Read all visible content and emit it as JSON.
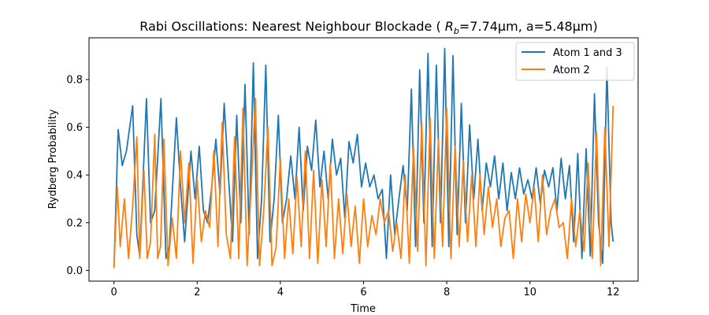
{
  "chart_data": {
    "type": "line",
    "title_main": "Rabi Oscillations: Nearest Neighbour Blockade ( ",
    "title_R": "R",
    "title_sub": "b",
    "title_rest": "=7.74μm, a=5.48μm)",
    "xlabel": "Time",
    "ylabel": "Rydberg Probability",
    "xlim": [
      -0.6,
      12.6
    ],
    "ylim": [
      -0.045,
      0.975
    ],
    "xticks": [
      0,
      2,
      4,
      6,
      8,
      10,
      12
    ],
    "xtick_labels": [
      "0",
      "2",
      "4",
      "6",
      "8",
      "10",
      "12"
    ],
    "yticks": [
      0.0,
      0.2,
      0.4,
      0.6,
      0.8
    ],
    "ytick_labels": [
      "0.0",
      "0.2",
      "0.4",
      "0.6",
      "0.8"
    ],
    "grid": false,
    "legend_position": "top-right",
    "series": [
      {
        "name": "Atom 1 and 3",
        "color": "#1f77b4",
        "x": [
          0,
          0.1,
          0.2,
          0.3,
          0.45,
          0.55,
          0.62,
          0.78,
          0.88,
          0.98,
          1.13,
          1.25,
          1.33,
          1.5,
          1.6,
          1.7,
          1.85,
          1.95,
          2.05,
          2.15,
          2.25,
          2.35,
          2.45,
          2.55,
          2.65,
          2.75,
          2.85,
          2.95,
          3.05,
          3.15,
          3.25,
          3.35,
          3.45,
          3.55,
          3.65,
          3.75,
          3.85,
          3.95,
          4.05,
          4.15,
          4.25,
          4.35,
          4.45,
          4.55,
          4.65,
          4.75,
          4.85,
          4.95,
          5.05,
          5.15,
          5.25,
          5.35,
          5.45,
          5.55,
          5.65,
          5.75,
          5.85,
          5.95,
          6.05,
          6.15,
          6.25,
          6.35,
          6.45,
          6.55,
          6.65,
          6.75,
          6.85,
          6.95,
          7.05,
          7.15,
          7.25,
          7.35,
          7.45,
          7.55,
          7.65,
          7.75,
          7.85,
          7.95,
          8.05,
          8.15,
          8.25,
          8.35,
          8.45,
          8.55,
          8.65,
          8.75,
          8.85,
          8.95,
          9.05,
          9.15,
          9.25,
          9.35,
          9.45,
          9.55,
          9.65,
          9.75,
          9.85,
          9.95,
          10.05,
          10.15,
          10.25,
          10.35,
          10.45,
          10.55,
          10.65,
          10.75,
          10.85,
          10.95,
          11.05,
          11.15,
          11.25,
          11.35,
          11.45,
          11.55,
          11.65,
          11.75,
          11.85,
          11.95,
          12.0
        ],
        "y": [
          0.01,
          0.59,
          0.44,
          0.5,
          0.69,
          0.15,
          0.06,
          0.72,
          0.2,
          0.25,
          0.72,
          0.05,
          0.1,
          0.64,
          0.35,
          0.12,
          0.5,
          0.3,
          0.52,
          0.25,
          0.2,
          0.35,
          0.55,
          0.32,
          0.7,
          0.4,
          0.12,
          0.65,
          0.2,
          0.78,
          0.15,
          0.87,
          0.05,
          0.3,
          0.86,
          0.12,
          0.3,
          0.65,
          0.2,
          0.3,
          0.48,
          0.3,
          0.6,
          0.25,
          0.52,
          0.42,
          0.63,
          0.35,
          0.5,
          0.3,
          0.55,
          0.4,
          0.47,
          0.22,
          0.54,
          0.45,
          0.57,
          0.35,
          0.45,
          0.35,
          0.4,
          0.3,
          0.34,
          0.05,
          0.4,
          0.15,
          0.3,
          0.44,
          0.25,
          0.76,
          0.1,
          0.84,
          0.2,
          0.91,
          0.1,
          0.86,
          0.2,
          0.93,
          0.1,
          0.9,
          0.15,
          0.7,
          0.2,
          0.61,
          0.3,
          0.55,
          0.25,
          0.45,
          0.35,
          0.48,
          0.3,
          0.45,
          0.25,
          0.41,
          0.3,
          0.43,
          0.32,
          0.38,
          0.3,
          0.43,
          0.28,
          0.42,
          0.35,
          0.43,
          0.25,
          0.47,
          0.3,
          0.44,
          0.12,
          0.49,
          0.05,
          0.51,
          0.06,
          0.74,
          0.2,
          0.03,
          0.85,
          0.2,
          0.12
        ]
      },
      {
        "name": "Atom 2",
        "color": "#ff7f0e",
        "x": [
          0,
          0.08,
          0.15,
          0.25,
          0.35,
          0.45,
          0.55,
          0.62,
          0.72,
          0.8,
          0.88,
          0.98,
          1.05,
          1.12,
          1.2,
          1.3,
          1.4,
          1.5,
          1.6,
          1.7,
          1.8,
          1.9,
          2.0,
          2.1,
          2.2,
          2.3,
          2.4,
          2.5,
          2.6,
          2.7,
          2.8,
          2.9,
          3.0,
          3.1,
          3.2,
          3.3,
          3.4,
          3.5,
          3.6,
          3.7,
          3.8,
          3.9,
          4.0,
          4.1,
          4.2,
          4.3,
          4.4,
          4.5,
          4.6,
          4.7,
          4.8,
          4.9,
          5.0,
          5.1,
          5.2,
          5.3,
          5.4,
          5.5,
          5.6,
          5.7,
          5.8,
          5.9,
          6.0,
          6.1,
          6.2,
          6.3,
          6.4,
          6.5,
          6.6,
          6.7,
          6.8,
          6.9,
          7.0,
          7.1,
          7.2,
          7.3,
          7.4,
          7.5,
          7.6,
          7.7,
          7.8,
          7.9,
          8.0,
          8.1,
          8.2,
          8.3,
          8.4,
          8.5,
          8.6,
          8.7,
          8.8,
          8.9,
          9.0,
          9.1,
          9.2,
          9.3,
          9.4,
          9.5,
          9.6,
          9.7,
          9.8,
          9.9,
          10.0,
          10.1,
          10.2,
          10.3,
          10.4,
          10.5,
          10.6,
          10.7,
          10.8,
          10.9,
          11.0,
          11.1,
          11.2,
          11.3,
          11.4,
          11.5,
          11.6,
          11.7,
          11.8,
          11.9,
          12.0
        ],
        "y": [
          0.01,
          0.35,
          0.1,
          0.3,
          0.05,
          0.27,
          0.56,
          0.05,
          0.42,
          0.05,
          0.12,
          0.57,
          0.05,
          0.1,
          0.55,
          0.02,
          0.22,
          0.05,
          0.5,
          0.2,
          0.45,
          0.03,
          0.38,
          0.12,
          0.25,
          0.18,
          0.5,
          0.1,
          0.62,
          0.15,
          0.05,
          0.56,
          0.05,
          0.68,
          0.02,
          0.35,
          0.72,
          0.02,
          0.25,
          0.6,
          0.02,
          0.1,
          0.47,
          0.05,
          0.3,
          0.07,
          0.39,
          0.1,
          0.5,
          0.05,
          0.42,
          0.03,
          0.38,
          0.1,
          0.45,
          0.05,
          0.3,
          0.07,
          0.32,
          0.1,
          0.27,
          0.03,
          0.3,
          0.1,
          0.23,
          0.15,
          0.3,
          0.2,
          0.25,
          0.08,
          0.2,
          0.05,
          0.4,
          0.03,
          0.52,
          0.08,
          0.62,
          0.02,
          0.64,
          0.05,
          0.55,
          0.1,
          0.68,
          0.05,
          0.52,
          0.1,
          0.46,
          0.12,
          0.4,
          0.1,
          0.4,
          0.15,
          0.35,
          0.18,
          0.3,
          0.1,
          0.22,
          0.25,
          0.05,
          0.3,
          0.12,
          0.32,
          0.2,
          0.35,
          0.12,
          0.4,
          0.15,
          0.25,
          0.3,
          0.18,
          0.2,
          0.05,
          0.3,
          0.1,
          0.25,
          0.08,
          0.45,
          0.05,
          0.58,
          0.02,
          0.6,
          0.1,
          0.69
        ]
      }
    ]
  }
}
